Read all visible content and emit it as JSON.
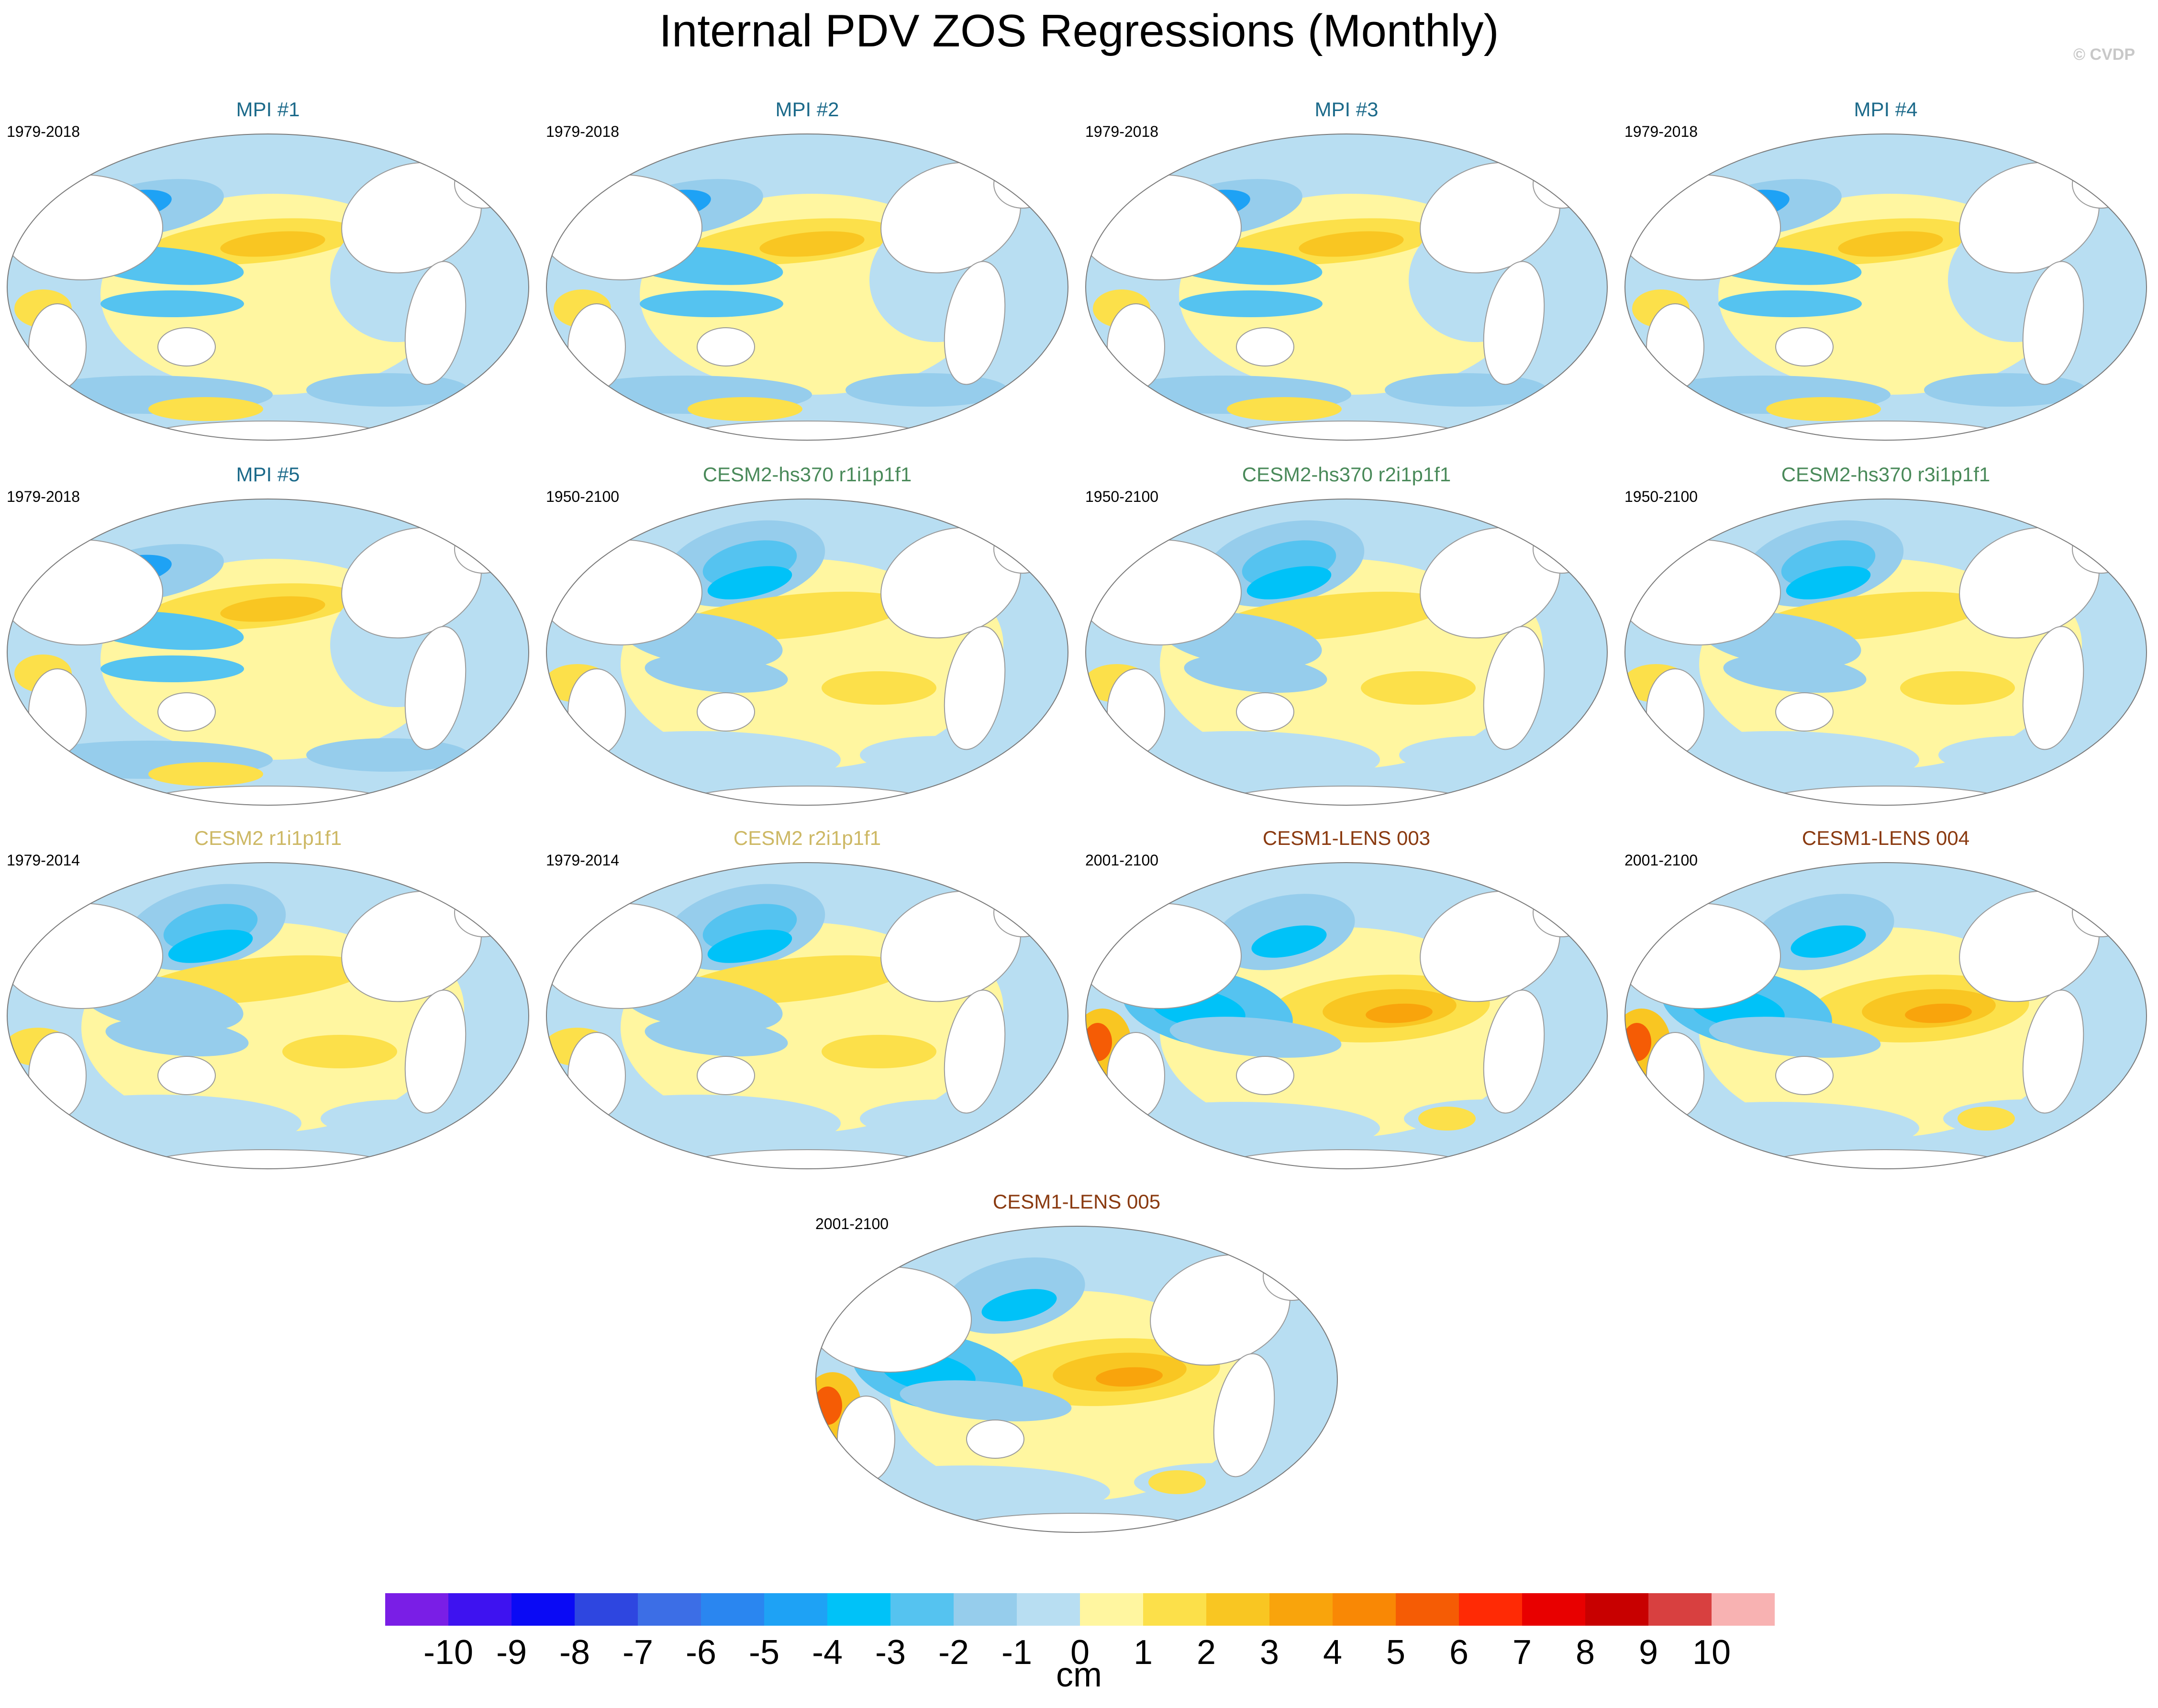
{
  "title": "Internal PDV ZOS Regressions (Monthly)",
  "watermark": "© CVDP",
  "chart_data": {
    "type": "heatmap",
    "title": "Internal PDV ZOS Regressions (Monthly)",
    "colorbar": {
      "units": "cm",
      "ticks": [
        "-10",
        "-9",
        "-8",
        "-7",
        "-6",
        "-5",
        "-4",
        "-3",
        "-2",
        "-1",
        "0",
        "1",
        "2",
        "3",
        "4",
        "5",
        "6",
        "7",
        "8",
        "9",
        "10"
      ],
      "colors": [
        "#7a1ee6",
        "#3e12f0",
        "#0a0af5",
        "#2e46e0",
        "#3c6ee6",
        "#2a86f0",
        "#1ea2f5",
        "#00c2f8",
        "#55c3f0",
        "#96cdec",
        "#b8def2",
        "#fff6a0",
        "#fce04a",
        "#f9c622",
        "#f9a40c",
        "#f98805",
        "#f55c05",
        "#ff2a05",
        "#e80000",
        "#c80000",
        "#d84040",
        "#f8b2b2"
      ]
    },
    "panels": [
      {
        "title": "MPI #1",
        "period": "1979-2018",
        "title_color": "#1c6a8a",
        "pattern": "mpi"
      },
      {
        "title": "MPI #2",
        "period": "1979-2018",
        "title_color": "#1c6a8a",
        "pattern": "mpi"
      },
      {
        "title": "MPI #3",
        "period": "1979-2018",
        "title_color": "#1c6a8a",
        "pattern": "mpi"
      },
      {
        "title": "MPI #4",
        "period": "1979-2018",
        "title_color": "#1c6a8a",
        "pattern": "mpi"
      },
      {
        "title": "MPI #5",
        "period": "1979-2018",
        "title_color": "#1c6a8a",
        "pattern": "mpi"
      },
      {
        "title": "CESM2-hs370 r1i1p1f1",
        "period": "1950-2100",
        "title_color": "#4a8a5a",
        "pattern": "cesm2"
      },
      {
        "title": "CESM2-hs370 r2i1p1f1",
        "period": "1950-2100",
        "title_color": "#4a8a5a",
        "pattern": "cesm2"
      },
      {
        "title": "CESM2-hs370 r3i1p1f1",
        "period": "1950-2100",
        "title_color": "#4a8a5a",
        "pattern": "cesm2"
      },
      {
        "title": "CESM2 r1i1p1f1",
        "period": "1979-2014",
        "title_color": "#cdb864",
        "pattern": "cesm2"
      },
      {
        "title": "CESM2 r2i1p1f1",
        "period": "1979-2014",
        "title_color": "#cdb864",
        "pattern": "cesm2"
      },
      {
        "title": "CESM1-LENS 003",
        "period": "2001-2100",
        "title_color": "#8a3a10",
        "pattern": "lens"
      },
      {
        "title": "CESM1-LENS 004",
        "period": "2001-2100",
        "title_color": "#8a3a10",
        "pattern": "lens"
      },
      {
        "title": "CESM1-LENS 005",
        "period": "2001-2100",
        "title_color": "#8a3a10",
        "pattern": "lens"
      }
    ]
  }
}
